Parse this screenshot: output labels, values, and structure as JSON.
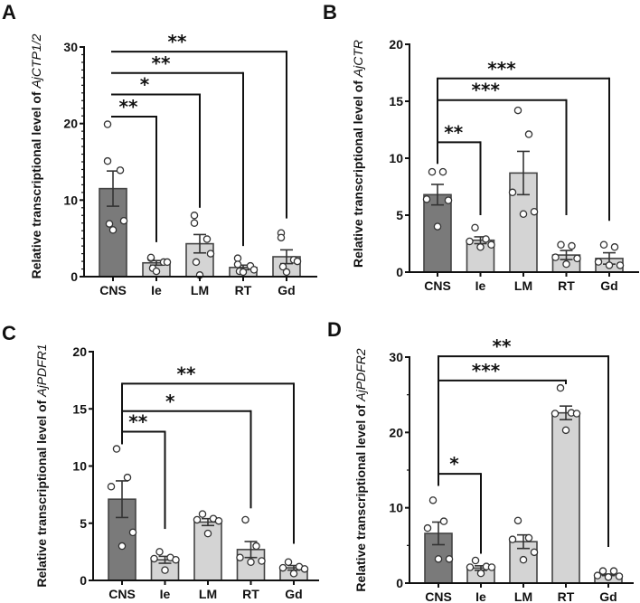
{
  "figure": {
    "categories": [
      "CNS",
      "Ie",
      "LM",
      "RT",
      "Gd"
    ],
    "colors": {
      "cns_fill": "#7a7a7a",
      "other_fill": "#d4d4d4",
      "bar_stroke": "#444444",
      "axis": "#111111",
      "point_fill": "#ffffff",
      "point_stroke": "#333333"
    }
  },
  "chart_data": [
    {
      "panel": "A",
      "type": "bar",
      "title": "",
      "ylabel_prefix": "Relative transcriptional level of ",
      "ylabel_gene": "AjCTP1/2",
      "xlabel": "",
      "categories": [
        "CNS",
        "Ie",
        "LM",
        "RT",
        "Gd"
      ],
      "ylim": [
        0,
        30
      ],
      "yticks": [
        0,
        10,
        20,
        30
      ],
      "minor_ticks_per_major": 10,
      "values": [
        11.5,
        1.8,
        4.3,
        1.2,
        2.6
      ],
      "sem": [
        2.3,
        0.3,
        1.2,
        0.3,
        0.9
      ],
      "points": [
        [
          19.9,
          15.1,
          13.9,
          7.3,
          6.9,
          6.1
        ],
        [
          2.4,
          2.5,
          1.9,
          1.9,
          1.1,
          0.7
        ],
        [
          8.0,
          7.0,
          4.9,
          3.0,
          1.9,
          0.2
        ],
        [
          2.4,
          1.6,
          1.4,
          0.9,
          0.7,
          0.6
        ],
        [
          5.7,
          5.1,
          2.2,
          2.0,
          1.3,
          0.6
        ]
      ],
      "significance": [
        {
          "from": "CNS",
          "to": "Ie",
          "label": "**",
          "y": 20.9,
          "to_end": 4.5
        },
        {
          "from": "CNS",
          "to": "LM",
          "label": "*",
          "y": 23.8,
          "to_end": 9.0
        },
        {
          "from": "CNS",
          "to": "RT",
          "label": "**",
          "y": 26.6,
          "to_end": 4.0
        },
        {
          "from": "CNS",
          "to": "Gd",
          "label": "**",
          "y": 29.4,
          "to_end": 7.6
        }
      ],
      "bracket_from_end": null
    },
    {
      "panel": "B",
      "type": "bar",
      "title": "",
      "ylabel_prefix": "Relative transcriptional level of ",
      "ylabel_gene": "AjCTR",
      "xlabel": "",
      "categories": [
        "CNS",
        "Ie",
        "LM",
        "RT",
        "Gd"
      ],
      "ylim": [
        0,
        20
      ],
      "yticks": [
        0,
        5,
        10,
        15,
        20
      ],
      "minor_ticks_per_major": 0,
      "values": [
        6.8,
        2.8,
        8.7,
        1.5,
        1.2
      ],
      "sem": [
        0.9,
        0.3,
        1.9,
        0.4,
        0.5
      ],
      "points": [
        [
          8.8,
          8.8,
          6.4,
          6.3,
          4.0
        ],
        [
          3.9,
          2.9,
          2.7,
          2.4,
          2.2
        ],
        [
          14.2,
          12.1,
          7.0,
          5.3,
          5.1
        ],
        [
          2.4,
          2.3,
          1.3,
          1.2,
          0.7
        ],
        [
          2.4,
          2.2,
          0.9,
          0.6,
          0.6
        ]
      ],
      "significance": [
        {
          "from": "CNS",
          "to": "Ie",
          "label": "**",
          "y": 11.4,
          "to_end": 5.0
        },
        {
          "from": "CNS",
          "to": "RT",
          "label": "***",
          "y": 15.1,
          "to_end": 5.0
        },
        {
          "from": "CNS",
          "to": "Gd",
          "label": "***",
          "y": 17.0,
          "to_end": 4.5
        }
      ],
      "bracket_from_end": 9.5
    },
    {
      "panel": "C",
      "type": "bar",
      "title": "",
      "ylabel_prefix": "Relative transcriptional level of ",
      "ylabel_gene": "AjPDFR1",
      "xlabel": "",
      "categories": [
        "CNS",
        "Ie",
        "LM",
        "RT",
        "Gd"
      ],
      "ylim": [
        0,
        20
      ],
      "yticks": [
        0,
        5,
        10,
        15,
        20
      ],
      "minor_ticks_per_major": 0,
      "values": [
        7.1,
        1.8,
        5.1,
        2.7,
        1.1
      ],
      "sem": [
        1.6,
        0.3,
        0.3,
        0.7,
        0.2
      ],
      "points": [
        [
          11.5,
          9.0,
          8.2,
          4.2,
          3.0
        ],
        [
          2.5,
          2.0,
          1.9,
          1.8,
          0.9
        ],
        [
          5.8,
          5.4,
          5.3,
          5.2,
          4.1
        ],
        [
          5.3,
          3.0,
          2.0,
          1.7,
          1.6
        ],
        [
          1.6,
          1.2,
          1.1,
          1.0,
          0.6
        ]
      ],
      "significance": [
        {
          "from": "CNS",
          "to": "Ie",
          "label": "**",
          "y": 13.0,
          "to_end": 4.5
        },
        {
          "from": "CNS",
          "to": "RT",
          "label": "*",
          "y": 14.8,
          "to_end": 6.3
        },
        {
          "from": "CNS",
          "to": "Gd",
          "label": "**",
          "y": 17.2,
          "to_end": 3.2
        }
      ],
      "bracket_from_end": 11.9
    },
    {
      "panel": "D",
      "type": "bar",
      "title": "",
      "ylabel_prefix": "Relative transcriptional level of ",
      "ylabel_gene": "AjPDFR2",
      "xlabel": "",
      "categories": [
        "CNS",
        "Ie",
        "LM",
        "RT",
        "Gd"
      ],
      "ylim": [
        0,
        30
      ],
      "yticks": [
        0,
        10,
        20,
        30
      ],
      "minor_ticks_per_major": 2,
      "values": [
        6.6,
        2.0,
        5.5,
        22.6,
        1.1
      ],
      "sem": [
        1.5,
        0.3,
        0.9,
        0.9,
        0.1
      ],
      "points": [
        [
          11.0,
          8.2,
          7.3,
          3.2,
          3.2
        ],
        [
          3.0,
          2.2,
          2.1,
          2.1,
          1.3
        ],
        [
          8.3,
          6.0,
          5.8,
          4.1,
          3.1
        ],
        [
          25.9,
          22.6,
          22.5,
          22.5,
          20.3
        ],
        [
          1.6,
          1.6,
          1.0,
          0.9,
          0.8
        ]
      ],
      "significance": [
        {
          "from": "CNS",
          "to": "Ie",
          "label": "*",
          "y": 14.5,
          "to_end": 3.9
        },
        {
          "from": "CNS",
          "to": "RT",
          "label": "***",
          "y": 26.9,
          "to_end": 26.4
        },
        {
          "from": "CNS",
          "to": "Gd",
          "label": "**",
          "y": 30.1,
          "to_end": 4.8
        }
      ],
      "bracket_from_end": 12.9
    }
  ]
}
